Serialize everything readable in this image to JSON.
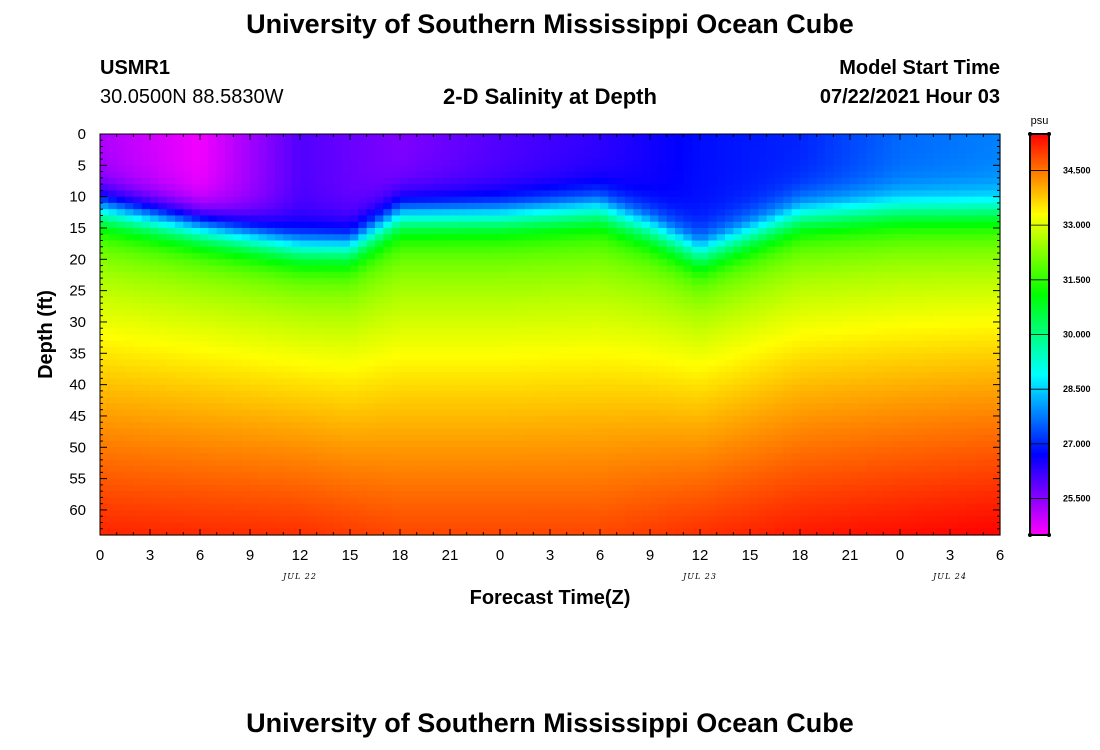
{
  "header": {
    "title_top": "University of Southern Mississippi Ocean Cube",
    "title_bottom": "University of Southern Mississippi Ocean Cube",
    "station_id": "USMR1",
    "coordinates": "30.0500N  88.5830W",
    "subtitle": "2-D Salinity at Depth",
    "model_start_label": "Model Start Time",
    "model_start_value": "07/22/2021 Hour 03"
  },
  "chart_data": {
    "type": "heatmap",
    "title": "2-D Salinity at Depth",
    "xlabel": "Forecast Time(Z)",
    "ylabel": "Depth (ft)",
    "x_tick_labels": [
      "0",
      "3",
      "6",
      "9",
      "12",
      "15",
      "18",
      "21",
      "0",
      "3",
      "6",
      "9",
      "12",
      "15",
      "18",
      "21",
      "0",
      "3",
      "6"
    ],
    "x_range_hours": [
      0,
      54
    ],
    "date_labels": [
      {
        "label": "JUL 22",
        "hour": 12
      },
      {
        "label": "JUL 23",
        "hour": 36
      },
      {
        "label": "JUL 24",
        "hour": 51
      }
    ],
    "y_ticks": [
      0,
      5,
      10,
      15,
      20,
      25,
      30,
      35,
      40,
      45,
      50,
      55,
      60
    ],
    "y_range": [
      0,
      64
    ],
    "colorbar": {
      "unit": "psu",
      "min": 24.5,
      "max": 35.5,
      "tick_values": [
        25.5,
        27.0,
        28.5,
        30.0,
        31.5,
        33.0,
        34.5
      ],
      "tick_labels": [
        "25.500",
        "27.000",
        "28.500",
        "30.000",
        "31.500",
        "33.000",
        "34.500"
      ]
    },
    "halocline_depth_ft": {
      "hours": [
        0,
        6,
        12,
        15,
        18,
        24,
        30,
        33,
        36,
        39,
        42,
        48,
        54
      ],
      "values": [
        10,
        13,
        16,
        16,
        11,
        11,
        10,
        13,
        17,
        14,
        11,
        10,
        10
      ]
    },
    "surface_salinity_psu": {
      "hours": [
        0,
        6,
        12,
        18,
        24,
        30,
        36,
        42,
        48,
        54
      ],
      "values": [
        25.2,
        24.6,
        26.0,
        25.6,
        26.0,
        26.3,
        26.8,
        27.0,
        27.6,
        27.8
      ]
    },
    "bottom_salinity_psu": {
      "hours": [
        0,
        12,
        18,
        30,
        36,
        42,
        48,
        54
      ],
      "values": [
        35.2,
        35.1,
        34.9,
        34.9,
        35.1,
        35.3,
        35.4,
        35.5
      ]
    }
  }
}
